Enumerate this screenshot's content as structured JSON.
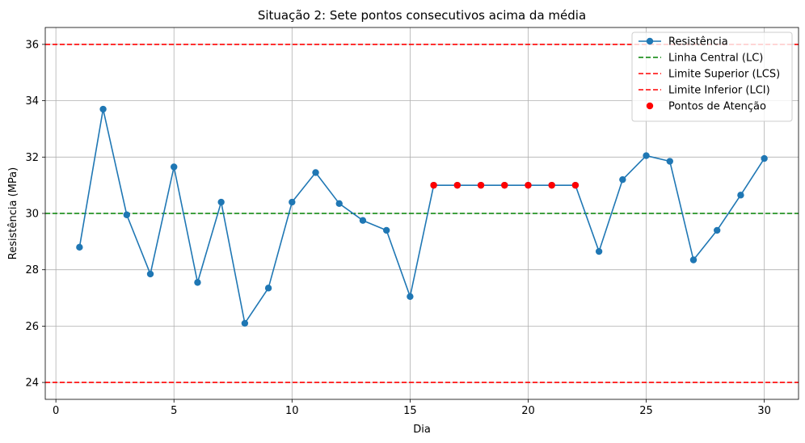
{
  "chart_data": {
    "type": "line",
    "title": "Situação 2: Sete pontos consecutivos acima da média",
    "xlabel": "Dia",
    "ylabel": "Resistência (MPa)",
    "xlim": [
      -0.45,
      31.45
    ],
    "ylim": [
      23.4,
      36.6
    ],
    "xticks": [
      0,
      5,
      10,
      15,
      20,
      25,
      30
    ],
    "yticks": [
      24,
      26,
      28,
      30,
      32,
      34,
      36
    ],
    "grid": true,
    "legend_position": "top-right",
    "series": [
      {
        "name": "Resistência",
        "color": "#1f77b4",
        "marker": "circle",
        "x": [
          1,
          2,
          3,
          4,
          5,
          6,
          7,
          8,
          9,
          10,
          11,
          12,
          13,
          14,
          15,
          16,
          17,
          18,
          19,
          20,
          21,
          22,
          23,
          24,
          25,
          26,
          27,
          28,
          29,
          30
        ],
        "y": [
          28.8,
          33.7,
          29.95,
          27.85,
          31.65,
          27.55,
          30.4,
          26.1,
          27.35,
          30.4,
          31.45,
          30.35,
          29.75,
          29.4,
          27.05,
          31.0,
          31.0,
          31.0,
          31.0,
          31.0,
          31.0,
          31.0,
          28.65,
          31.2,
          32.05,
          31.85,
          28.35,
          29.4,
          30.65,
          31.95
        ]
      }
    ],
    "reference_lines": [
      {
        "name": "Linha Central (LC)",
        "y": 30,
        "color": "#008000",
        "style": "dashed"
      },
      {
        "name": "Limite Superior (LCS)",
        "y": 36,
        "color": "#ff0000",
        "style": "dashed"
      },
      {
        "name": "Limite Inferior (LCI)",
        "y": 24,
        "color": "#ff0000",
        "style": "dashed"
      }
    ],
    "highlight": {
      "name": "Pontos de Atenção",
      "color": "#ff0000",
      "x": [
        16,
        17,
        18,
        19,
        20,
        21,
        22
      ],
      "y": [
        31.0,
        31.0,
        31.0,
        31.0,
        31.0,
        31.0,
        31.0
      ]
    }
  }
}
